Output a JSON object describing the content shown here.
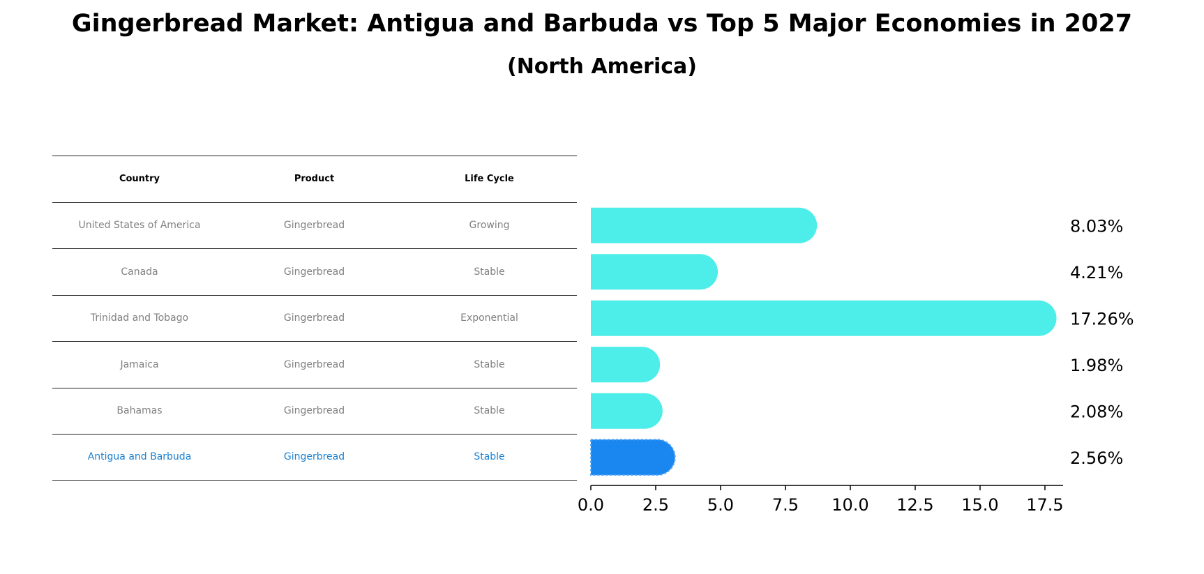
{
  "title": "Gingerbread Market: Antigua and Barbuda vs Top 5 Major Economies in 2027",
  "subtitle": "(North America)",
  "table": {
    "headers": [
      "Country",
      "Product",
      "Life Cycle"
    ],
    "rows": [
      {
        "country": "United States of America",
        "product": "Gingerbread",
        "life_cycle": "Growing"
      },
      {
        "country": "Canada",
        "product": "Gingerbread",
        "life_cycle": "Stable"
      },
      {
        "country": "Trinidad and Tobago",
        "product": "Gingerbread",
        "life_cycle": "Exponential"
      },
      {
        "country": "Jamaica",
        "product": "Gingerbread",
        "life_cycle": "Stable"
      },
      {
        "country": "Bahamas",
        "product": "Gingerbread",
        "life_cycle": "Stable"
      },
      {
        "country": "Antigua and Barbuda",
        "product": "Gingerbread",
        "life_cycle": "Stable"
      }
    ]
  },
  "chart_data": {
    "type": "bar",
    "orientation": "horizontal",
    "categories": [
      "United States of America",
      "Canada",
      "Trinidad and Tobago",
      "Jamaica",
      "Bahamas",
      "Antigua and Barbuda"
    ],
    "values": [
      8.03,
      4.21,
      17.26,
      1.98,
      2.08,
      2.56
    ],
    "value_labels": [
      "8.03%",
      "4.21%",
      "17.26%",
      "1.98%",
      "2.08%",
      "2.56%"
    ],
    "highlight_index": 5,
    "xlim": [
      0,
      18.2
    ],
    "x_ticks": [
      0.0,
      2.5,
      5.0,
      7.5,
      10.0,
      12.5,
      15.0,
      17.5
    ],
    "x_tick_labels": [
      "0.0",
      "2.5",
      "5.0",
      "7.5",
      "10.0",
      "12.5",
      "15.0",
      "17.5"
    ],
    "grid": false,
    "colors": {
      "bar": "#4dede9",
      "highlight": "#1a87f0",
      "highlight_text": "#1a80d0"
    }
  }
}
